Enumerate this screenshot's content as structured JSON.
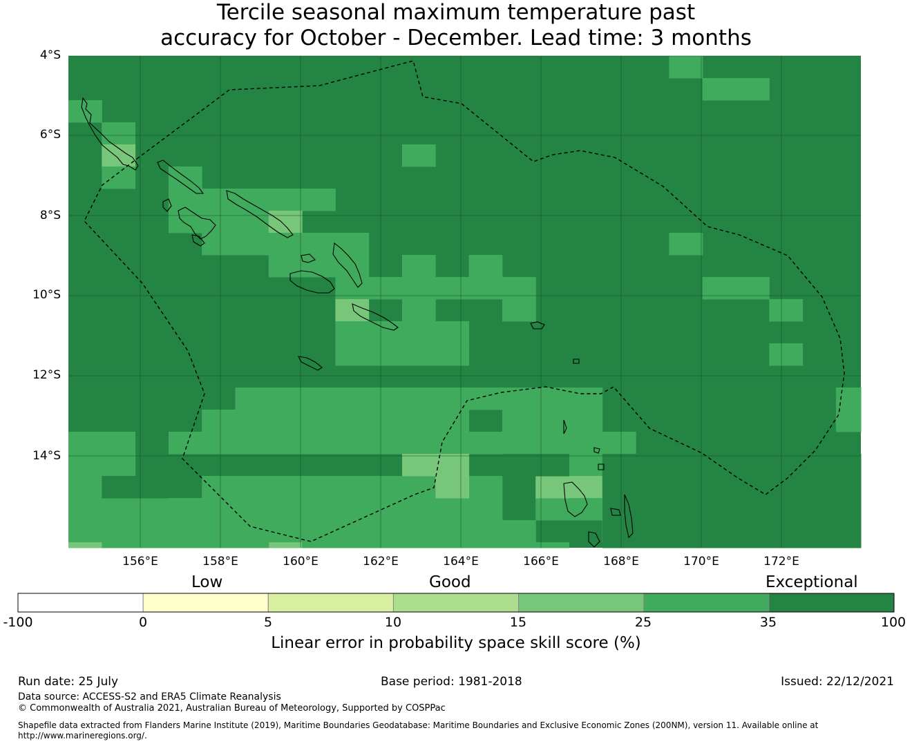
{
  "title": {
    "line1": "Tercile seasonal maximum temperature past",
    "line2": "accuracy for October - December. Lead time: 3 months"
  },
  "map": {
    "lat_labels": [
      "4°S",
      "6°S",
      "8°S",
      "10°S",
      "12°S",
      "14°S"
    ],
    "lon_labels": [
      "156°E",
      "158°E",
      "160°E",
      "162°E",
      "164°E",
      "166°E",
      "168°E",
      "170°E",
      "172°E"
    ],
    "extent": {
      "lon_min": 154.2,
      "lon_max": 174,
      "lat_max": -4,
      "lat_min": -16.3
    },
    "grid_cell_deg": 0.833,
    "background_category": "exceptional_dark",
    "boundary": "Solomon Islands EEZ (dashed)",
    "land_outline_color": "#000000"
  },
  "colorbar": {
    "categories": [
      "Low",
      "Good",
      "Exceptional"
    ],
    "ticks": [
      "-100",
      "0",
      "5",
      "10",
      "15",
      "25",
      "35",
      "100"
    ],
    "colors": [
      "#ffffff",
      "#ffffcc",
      "#d9f0a3",
      "#addd8e",
      "#78c679",
      "#41ab5d",
      "#238443"
    ],
    "label": "Linear error in probability space skill score (%)"
  },
  "footer": {
    "run_date": "Run date: 25 July",
    "base_period": "Base period: 1981-2018",
    "issued": "Issued: 22/12/2021",
    "data_source": "Data source: ACCESS-S2 and ERA5 Climate Reanalysis",
    "copyright": "© Commonwealth of Australia 2021, Australian Bureau of Meteorology, Supported by COSPPac",
    "shapefile": "Shapefile data extracted from Flanders Marine Institute (2019), Maritime Boundaries Geodatabase: Maritime Boundaries and Exclusive Economic Zones (200NM), version 11. Available online at http://www.marineregions.org/."
  }
}
